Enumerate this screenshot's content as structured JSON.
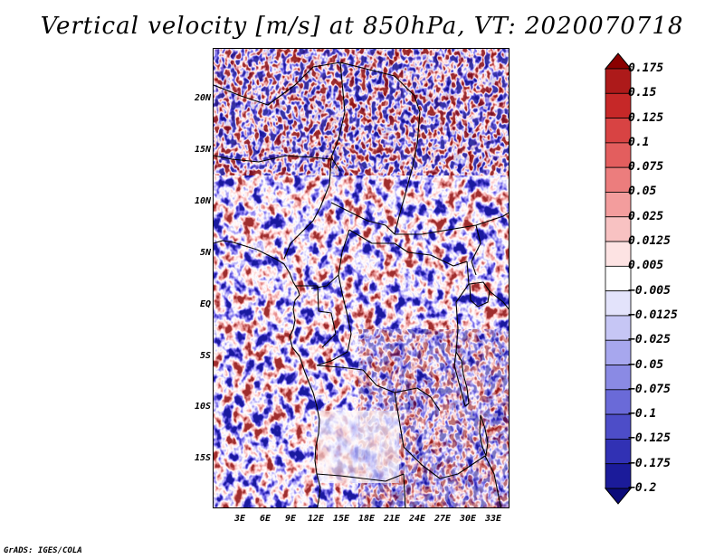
{
  "title": "Vertical velocity [m/s] at 850hPa, VT: 2020070718",
  "credit": "GrADS: IGES/COLA",
  "map": {
    "lat_labels": [
      "20N",
      "15N",
      "10N",
      "5N",
      "EQ",
      "5S",
      "10S",
      "15S"
    ],
    "lon_labels": [
      "3E",
      "6E",
      "9E",
      "12E",
      "15E",
      "18E",
      "21E",
      "24E",
      "27E",
      "30E",
      "33E"
    ]
  },
  "chart_data": {
    "type": "heatmap",
    "title": "Vertical velocity [m/s] at 850hPa, VT: 2020070718",
    "variable": "Vertical velocity",
    "units": "m/s",
    "level": "850hPa",
    "valid_time": "2020070718",
    "x_ticks": [
      "3E",
      "6E",
      "9E",
      "12E",
      "15E",
      "18E",
      "21E",
      "24E",
      "27E",
      "30E",
      "33E"
    ],
    "y_ticks": [
      "20N",
      "15N",
      "10N",
      "5N",
      "EQ",
      "5S",
      "10S",
      "15S"
    ],
    "colorbar": {
      "levels": [
        0.175,
        0.15,
        0.125,
        0.1,
        0.075,
        0.05,
        0.025,
        0.0125,
        0.005,
        -0.005,
        -0.0125,
        -0.025,
        -0.05,
        -0.075,
        -0.1,
        -0.125,
        -0.175,
        -0.2
      ],
      "labels": [
        "0.175",
        "0.15",
        "0.125",
        "0.1",
        "0.075",
        "0.05",
        "0.025",
        "0.0125",
        "0.005",
        "−0.005",
        "−0.0125",
        "−0.025",
        "−0.05",
        "−0.075",
        "−0.1",
        "−0.125",
        "−0.175",
        "−0.2"
      ],
      "colors": [
        "#8b0000",
        "#ad1a1a",
        "#c62828",
        "#d84343",
        "#e35e5e",
        "#ec7d7d",
        "#f39d9d",
        "#f8c2c2",
        "#fde3e3",
        "#ffffff",
        "#e3e3fb",
        "#c6c6f5",
        "#a7a7ee",
        "#8a8ae4",
        "#6a6ad8",
        "#4d4dc8",
        "#3131b4",
        "#1b1b9a",
        "#0b0b7a"
      ]
    }
  }
}
